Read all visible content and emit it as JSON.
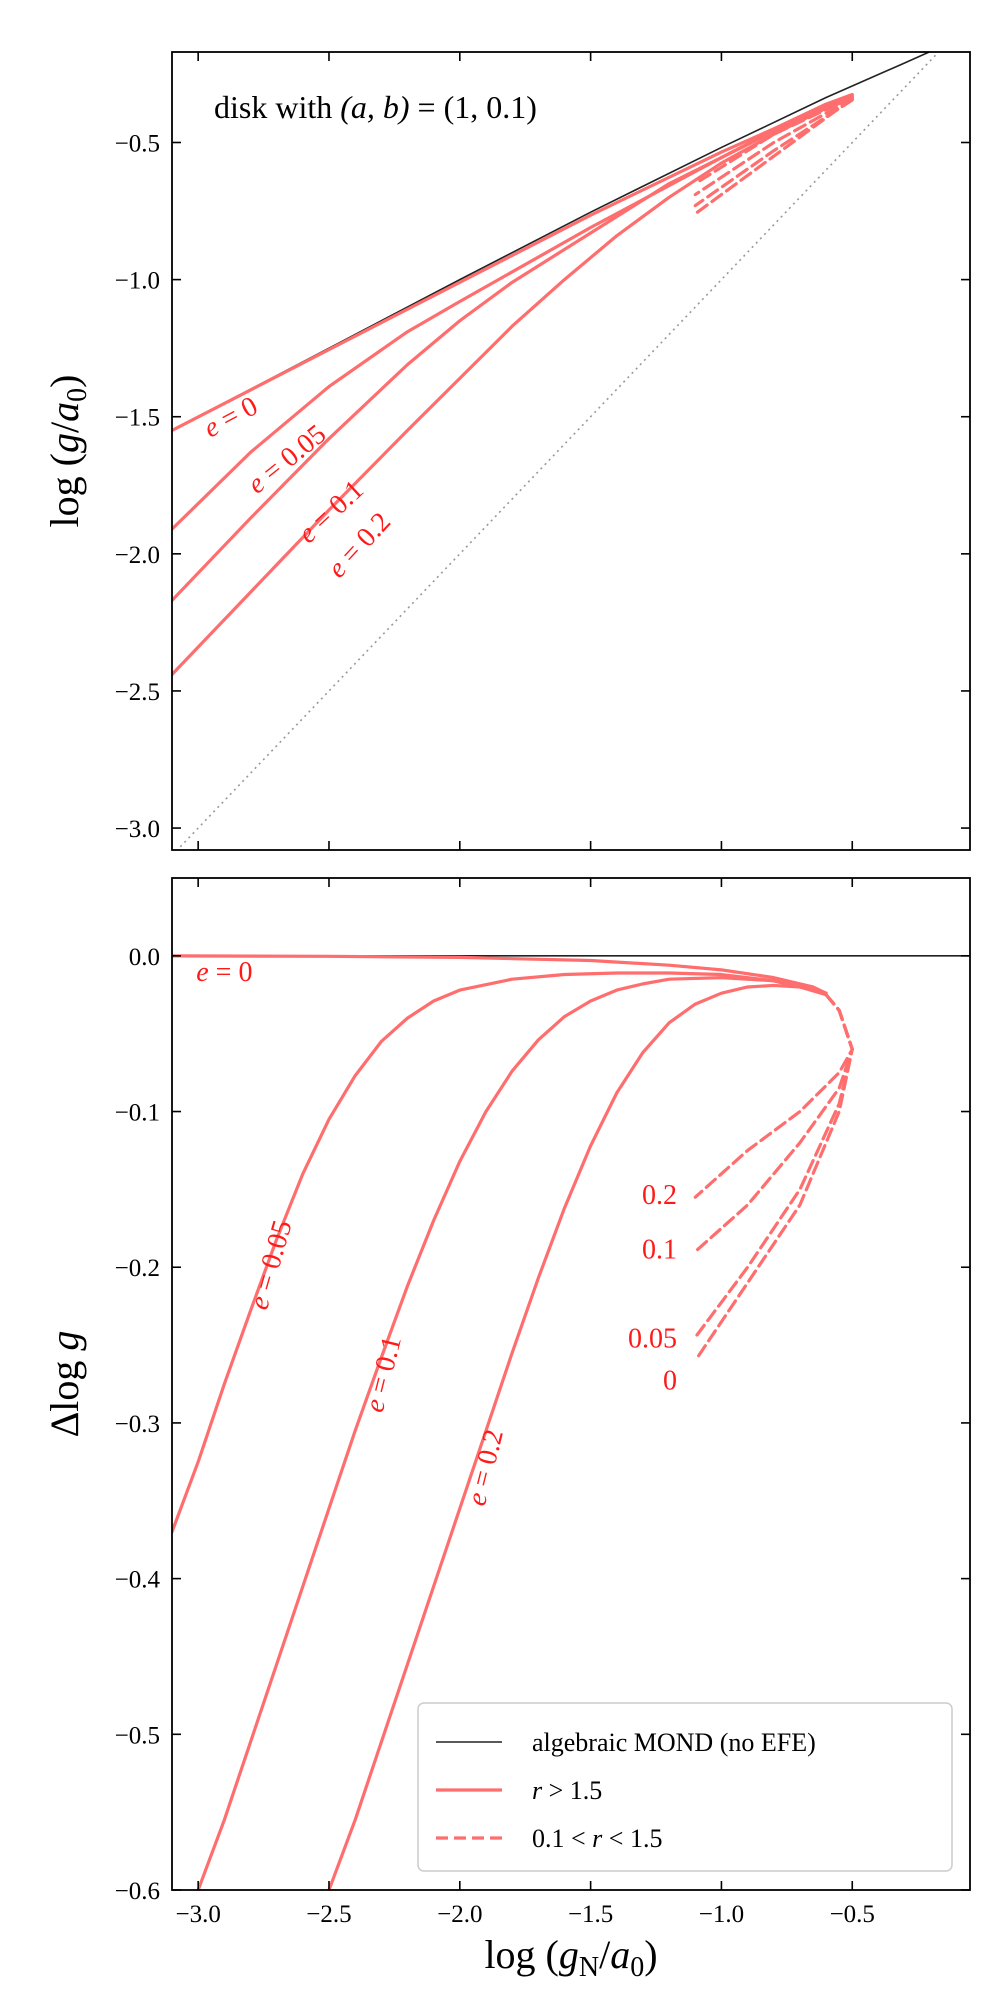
{
  "colors": {
    "mond": "#222222",
    "model": "#ff6e6e",
    "label": "#ff1a1a",
    "diagonal": "#999999",
    "axis": "#000000"
  },
  "chart_data": [
    {
      "type": "line",
      "panel": "top",
      "annotation": {
        "prefix": "disk with ",
        "ab_vars": "(a, b)",
        "eq": " = ",
        "values": "(1, 0.1)"
      },
      "xlim": [
        -3.1,
        -0.05
      ],
      "ylim": [
        -3.08,
        -0.17
      ],
      "xticks": [
        -3.0,
        -2.5,
        -2.0,
        -1.5,
        -1.0,
        -0.5
      ],
      "yticks": [
        -3.0,
        -2.5,
        -2.0,
        -1.5,
        -1.0,
        -0.5
      ],
      "ytick_labels": [
        "−3.0",
        "−2.5",
        "−2.0",
        "−1.5",
        "−1.0",
        "−0.5"
      ],
      "ylabel": {
        "prefix": "log (",
        "var": "g",
        "slash": "/",
        "var2": "a",
        "sub": "0",
        "suffix": ")"
      },
      "diagonal": {
        "style": "dotted",
        "x": [
          -3.1,
          -0.05
        ],
        "y": [
          -3.1,
          -0.05
        ]
      },
      "series": [
        {
          "style": "mond",
          "x": [
            -3.1,
            -2.5,
            -2.0,
            -1.5,
            -1.0,
            -0.6,
            -0.3,
            -0.1
          ],
          "y": [
            -1.55,
            -1.25,
            -1.0,
            -0.754,
            -0.518,
            -0.336,
            -0.21,
            -0.125
          ]
        },
        {
          "style": "solid",
          "e": 0,
          "x": [
            -3.1,
            -2.5,
            -2.0,
            -1.5,
            -1.0,
            -0.8,
            -0.6,
            -0.5
          ],
          "y": [
            -1.55,
            -1.255,
            -1.01,
            -0.765,
            -0.535,
            -0.45,
            -0.36,
            -0.325
          ]
        },
        {
          "style": "solid",
          "e": 0.05,
          "x": [
            -3.1,
            -2.8,
            -2.5,
            -2.2,
            -2.0,
            -1.5,
            -1.0,
            -0.8,
            -0.6,
            -0.5
          ],
          "y": [
            -1.91,
            -1.63,
            -1.39,
            -1.19,
            -1.08,
            -0.81,
            -0.555,
            -0.455,
            -0.365,
            -0.33
          ]
        },
        {
          "style": "solid",
          "e": 0.1,
          "x": [
            -3.1,
            -2.8,
            -2.5,
            -2.2,
            -2.0,
            -1.8,
            -1.5,
            -1.2,
            -1.0,
            -0.8,
            -0.6,
            -0.5
          ],
          "y": [
            -2.17,
            -1.87,
            -1.58,
            -1.31,
            -1.15,
            -1.01,
            -0.83,
            -0.65,
            -0.555,
            -0.46,
            -0.37,
            -0.335
          ]
        },
        {
          "style": "solid",
          "e": 0.2,
          "x": [
            -3.1,
            -2.8,
            -2.5,
            -2.2,
            -2.0,
            -1.8,
            -1.6,
            -1.4,
            -1.2,
            -1.0,
            -0.8,
            -0.6,
            -0.5
          ],
          "y": [
            -2.44,
            -2.14,
            -1.84,
            -1.55,
            -1.36,
            -1.17,
            -1.0,
            -0.84,
            -0.7,
            -0.575,
            -0.47,
            -0.375,
            -0.34
          ]
        },
        {
          "style": "dashed",
          "e": 0,
          "x": [
            -0.5,
            -0.8,
            -1.1
          ],
          "y": [
            -0.34,
            -0.55,
            -0.76
          ]
        },
        {
          "style": "dashed",
          "e": 0.05,
          "x": [
            -0.5,
            -0.8,
            -1.1
          ],
          "y": [
            -0.345,
            -0.53,
            -0.73
          ]
        },
        {
          "style": "dashed",
          "e": 0.1,
          "x": [
            -0.5,
            -0.8,
            -1.1
          ],
          "y": [
            -0.34,
            -0.5,
            -0.69
          ]
        },
        {
          "style": "dashed",
          "e": 0.2,
          "x": [
            -0.5,
            -0.8,
            -1.1
          ],
          "y": [
            -0.335,
            -0.47,
            -0.65
          ]
        }
      ],
      "labels": [
        {
          "e_text": "e",
          "eq": " = ",
          "value": "0",
          "x": -2.86,
          "y": -1.53,
          "angle": -28
        },
        {
          "e_text": "e",
          "eq": " = ",
          "value": "0.05",
          "x": -2.64,
          "y": -1.68,
          "angle": -39
        },
        {
          "e_text": "e",
          "eq": " = ",
          "value": "0.1",
          "x": -2.47,
          "y": -1.87,
          "angle": -43
        },
        {
          "e_text": "e",
          "eq": " = ",
          "value": "0.2",
          "x": -2.36,
          "y": -1.99,
          "angle": -47
        }
      ]
    },
    {
      "type": "line",
      "panel": "bottom",
      "xlim": [
        -3.1,
        -0.05
      ],
      "ylim": [
        -0.6,
        0.05
      ],
      "xticks": [
        -3.0,
        -2.5,
        -2.0,
        -1.5,
        -1.0,
        -0.5
      ],
      "xtick_labels": [
        "−3.0",
        "−2.5",
        "−2.0",
        "−1.5",
        "−1.0",
        "−0.5"
      ],
      "yticks": [
        0.0,
        -0.1,
        -0.2,
        -0.3,
        -0.4,
        -0.5,
        -0.6
      ],
      "ytick_labels": [
        "0.0",
        "−0.1",
        "−0.2",
        "−0.3",
        "−0.4",
        "−0.5",
        "−0.6"
      ],
      "xlabel": {
        "prefix": "log (",
        "var": "g",
        "sub": "N",
        "slash": "/",
        "var2": "a",
        "sub2": "0",
        "suffix": ")"
      },
      "ylabel": {
        "delta": "Δ",
        "log": "log ",
        "var": "g"
      },
      "series": [
        {
          "style": "mond",
          "x": [
            -3.1,
            -0.05
          ],
          "y": [
            0.0,
            0.0
          ]
        },
        {
          "style": "solid",
          "e": 0,
          "x": [
            -3.1,
            -2.5,
            -2.0,
            -1.5,
            -1.2,
            -1.0,
            -0.8,
            -0.65,
            -0.6
          ],
          "y": [
            0.0,
            -0.0003,
            -0.001,
            -0.003,
            -0.006,
            -0.009,
            -0.014,
            -0.02,
            -0.024
          ]
        },
        {
          "style": "solid",
          "e": 0.05,
          "x": [
            -3.1,
            -3.0,
            -2.9,
            -2.8,
            -2.7,
            -2.6,
            -2.5,
            -2.4,
            -2.3,
            -2.2,
            -2.1,
            -2.0,
            -1.8,
            -1.6,
            -1.4,
            -1.2,
            -1.0,
            -0.8,
            -0.6
          ],
          "y": [
            -0.37,
            -0.325,
            -0.275,
            -0.228,
            -0.182,
            -0.14,
            -0.105,
            -0.077,
            -0.055,
            -0.04,
            -0.029,
            -0.022,
            -0.015,
            -0.012,
            -0.011,
            -0.011,
            -0.012,
            -0.016,
            -0.024
          ]
        },
        {
          "style": "solid",
          "e": 0.1,
          "x": [
            -3.0,
            -2.9,
            -2.8,
            -2.7,
            -2.6,
            -2.5,
            -2.4,
            -2.3,
            -2.2,
            -2.1,
            -2.0,
            -1.9,
            -1.8,
            -1.7,
            -1.6,
            -1.5,
            -1.4,
            -1.3,
            -1.2,
            -1.0,
            -0.8,
            -0.6
          ],
          "y": [
            -0.6,
            -0.555,
            -0.505,
            -0.455,
            -0.405,
            -0.355,
            -0.305,
            -0.258,
            -0.212,
            -0.17,
            -0.132,
            -0.1,
            -0.074,
            -0.054,
            -0.039,
            -0.029,
            -0.022,
            -0.018,
            -0.015,
            -0.014,
            -0.016,
            -0.024
          ]
        },
        {
          "style": "solid",
          "e": 0.2,
          "x": [
            -2.5,
            -2.4,
            -2.3,
            -2.2,
            -2.1,
            -2.0,
            -1.9,
            -1.8,
            -1.7,
            -1.6,
            -1.5,
            -1.4,
            -1.3,
            -1.2,
            -1.1,
            -1.0,
            -0.9,
            -0.8,
            -0.7,
            -0.6
          ],
          "y": [
            -0.6,
            -0.555,
            -0.505,
            -0.455,
            -0.405,
            -0.355,
            -0.305,
            -0.255,
            -0.207,
            -0.162,
            -0.122,
            -0.088,
            -0.062,
            -0.043,
            -0.031,
            -0.024,
            -0.02,
            -0.019,
            -0.02,
            -0.025
          ]
        },
        {
          "style": "dashed",
          "e": 0,
          "x": [
            -0.6,
            -0.55,
            -0.5,
            -0.55,
            -0.7,
            -0.9,
            -1.1
          ],
          "y": [
            -0.025,
            -0.035,
            -0.06,
            -0.1,
            -0.16,
            -0.21,
            -0.26
          ]
        },
        {
          "style": "dashed",
          "e": 0.05,
          "x": [
            -0.6,
            -0.55,
            -0.5,
            -0.55,
            -0.7,
            -0.9,
            -1.1
          ],
          "y": [
            -0.025,
            -0.035,
            -0.06,
            -0.095,
            -0.15,
            -0.2,
            -0.245
          ]
        },
        {
          "style": "dashed",
          "e": 0.1,
          "x": [
            -0.6,
            -0.55,
            -0.5,
            -0.55,
            -0.7,
            -0.9,
            -1.1
          ],
          "y": [
            -0.025,
            -0.035,
            -0.06,
            -0.085,
            -0.12,
            -0.16,
            -0.19
          ]
        },
        {
          "style": "dashed",
          "e": 0.2,
          "x": [
            -0.6,
            -0.55,
            -0.5,
            -0.55,
            -0.7,
            -0.9,
            -1.1
          ],
          "y": [
            -0.025,
            -0.035,
            -0.06,
            -0.075,
            -0.1,
            -0.125,
            -0.155
          ]
        }
      ],
      "labels": [
        {
          "e_text": "e",
          "eq": " = ",
          "value": "0",
          "x": -2.9,
          "y": -0.016,
          "angle": 0
        },
        {
          "e_text": "e",
          "eq": " = ",
          "value": "0.05",
          "x": -2.69,
          "y": -0.2,
          "angle": -74
        },
        {
          "e_text": "e",
          "eq": " = ",
          "value": "0.1",
          "x": -2.26,
          "y": -0.27,
          "angle": -76
        },
        {
          "e_text": "e",
          "eq": " = ",
          "value": "0.2",
          "x": -1.87,
          "y": -0.33,
          "angle": -76
        }
      ],
      "end_labels": [
        {
          "text": "0.2",
          "x": -1.17,
          "y": -0.153
        },
        {
          "text": "0.1",
          "x": -1.17,
          "y": -0.188
        },
        {
          "text": "0.05",
          "x": -1.17,
          "y": -0.245
        },
        {
          "text": "0",
          "x": -1.17,
          "y": -0.272
        }
      ],
      "legend": {
        "position": "lower-right",
        "entries": [
          {
            "style": "mond",
            "text": "algebraic MOND (no EFE)"
          },
          {
            "style": "solid",
            "var": "r",
            "rel": " > ",
            "tail": "1.5"
          },
          {
            "style": "dashed",
            "head": "0.1 < ",
            "var": "r",
            "rel": " < ",
            "tail": "1.5"
          }
        ]
      }
    }
  ]
}
